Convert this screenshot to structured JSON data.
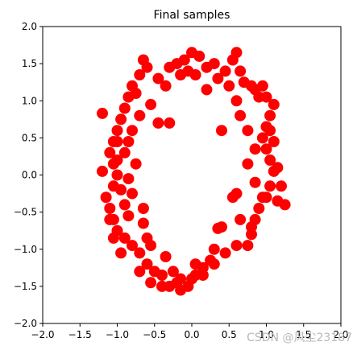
{
  "chart_data": {
    "type": "scatter",
    "title": "Final samples",
    "xlabel": "",
    "ylabel": "",
    "xlim": [
      -2.0,
      2.0
    ],
    "ylim": [
      -2.0,
      2.0
    ],
    "xticks": [
      "−2.0",
      "−1.5",
      "−1.0",
      "−0.5",
      "0.0",
      "0.5",
      "1.0",
      "1.5",
      "2.0"
    ],
    "yticks": [
      "−2.0",
      "−1.5",
      "−1.0",
      "−0.5",
      "0.0",
      "0.5",
      "1.0",
      "1.5",
      "2.0"
    ],
    "xtick_values": [
      -2.0,
      -1.5,
      -1.0,
      -0.5,
      0.0,
      0.5,
      1.0,
      1.5,
      2.0
    ],
    "ytick_values": [
      -2.0,
      -1.5,
      -1.0,
      -0.5,
      0.0,
      0.5,
      1.0,
      1.5,
      2.0
    ],
    "grid": false,
    "marker_color": "#ff0000",
    "points": [
      [
        -0.65,
        1.55
      ],
      [
        -0.45,
        1.3
      ],
      [
        -0.3,
        1.45
      ],
      [
        -0.2,
        1.5
      ],
      [
        -0.1,
        1.55
      ],
      [
        0.0,
        1.65
      ],
      [
        0.1,
        1.6
      ],
      [
        0.2,
        1.45
      ],
      [
        0.3,
        1.5
      ],
      [
        0.45,
        1.4
      ],
      [
        0.55,
        1.55
      ],
      [
        0.6,
        1.65
      ],
      [
        0.65,
        1.4
      ],
      [
        0.7,
        1.25
      ],
      [
        0.8,
        1.2
      ],
      [
        0.85,
        1.15
      ],
      [
        0.9,
        1.05
      ],
      [
        1.0,
        1.05
      ],
      [
        1.1,
        0.95
      ],
      [
        1.05,
        0.8
      ],
      [
        1.0,
        0.65
      ],
      [
        0.95,
        0.5
      ],
      [
        1.0,
        0.35
      ],
      [
        1.05,
        0.2
      ],
      [
        1.1,
        0.05
      ],
      [
        1.05,
        -0.15
      ],
      [
        1.0,
        -0.3
      ],
      [
        0.9,
        -0.45
      ],
      [
        0.85,
        -0.6
      ],
      [
        0.8,
        -0.8
      ],
      [
        0.75,
        -0.95
      ],
      [
        0.65,
        -0.6
      ],
      [
        0.6,
        -0.25
      ],
      [
        0.4,
        -0.7
      ],
      [
        0.3,
        -1.0
      ],
      [
        0.25,
        -1.15
      ],
      [
        0.15,
        -1.25
      ],
      [
        0.05,
        -1.35
      ],
      [
        -0.05,
        -1.5
      ],
      [
        -0.15,
        -1.55
      ],
      [
        -0.3,
        -1.5
      ],
      [
        -0.4,
        -1.35
      ],
      [
        -0.5,
        -1.3
      ],
      [
        -0.6,
        -1.2
      ],
      [
        -0.7,
        -1.05
      ],
      [
        -0.8,
        -0.95
      ],
      [
        -0.9,
        -0.85
      ],
      [
        -1.0,
        -0.75
      ],
      [
        -1.05,
        -0.6
      ],
      [
        -1.1,
        -0.45
      ],
      [
        -1.15,
        -0.3
      ],
      [
        -1.05,
        -0.15
      ],
      [
        -1.0,
        0.0
      ],
      [
        -1.05,
        0.15
      ],
      [
        -1.1,
        0.3
      ],
      [
        -1.05,
        0.45
      ],
      [
        -1.0,
        0.6
      ],
      [
        -0.95,
        0.75
      ],
      [
        -0.9,
        0.9
      ],
      [
        -0.85,
        1.05
      ],
      [
        -0.8,
        1.2
      ],
      [
        -0.7,
        1.35
      ],
      [
        -1.2,
        0.83
      ],
      [
        -1.2,
        0.05
      ],
      [
        -0.55,
        0.95
      ],
      [
        -0.45,
        0.7
      ],
      [
        -0.7,
        0.8
      ],
      [
        -0.8,
        0.6
      ],
      [
        -0.85,
        0.45
      ],
      [
        -0.9,
        0.3
      ],
      [
        -0.75,
        0.15
      ],
      [
        -0.85,
        -0.05
      ],
      [
        -0.8,
        -0.25
      ],
      [
        -0.9,
        -0.4
      ],
      [
        -0.85,
        -0.55
      ],
      [
        -0.65,
        -0.65
      ],
      [
        -0.6,
        -0.85
      ],
      [
        -0.55,
        -0.95
      ],
      [
        -0.35,
        -1.1
      ],
      [
        -0.25,
        -1.3
      ],
      [
        -0.15,
        -1.4
      ],
      [
        0.05,
        -1.2
      ],
      [
        0.35,
        -0.72
      ],
      [
        0.4,
        0.6
      ],
      [
        0.65,
        0.8
      ],
      [
        0.75,
        0.6
      ],
      [
        0.85,
        0.35
      ],
      [
        0.75,
        0.15
      ],
      [
        0.85,
        -0.1
      ],
      [
        0.95,
        -0.3
      ],
      [
        0.55,
        -0.3
      ],
      [
        0.95,
        1.2
      ],
      [
        0.6,
        1.0
      ],
      [
        0.5,
        1.2
      ],
      [
        0.35,
        1.3
      ],
      [
        0.2,
        1.15
      ],
      [
        0.05,
        1.35
      ],
      [
        -0.05,
        1.4
      ],
      [
        -0.15,
        1.35
      ],
      [
        -0.35,
        1.2
      ],
      [
        -0.6,
        1.45
      ],
      [
        -0.75,
        1.1
      ],
      [
        -1.0,
        0.45
      ],
      [
        -1.0,
        0.2
      ],
      [
        -0.95,
        -0.2
      ],
      [
        -1.1,
        -0.6
      ],
      [
        -1.05,
        -0.85
      ],
      [
        -0.95,
        -1.05
      ],
      [
        -0.7,
        -1.3
      ],
      [
        -0.55,
        -1.45
      ],
      [
        -0.4,
        -1.5
      ],
      [
        -0.2,
        -1.45
      ],
      [
        0.0,
        -1.4
      ],
      [
        0.15,
        -1.35
      ],
      [
        0.3,
        -1.2
      ],
      [
        0.45,
        -1.05
      ],
      [
        0.6,
        -0.95
      ],
      [
        0.8,
        -0.7
      ],
      [
        1.15,
        -0.35
      ],
      [
        1.25,
        -0.4
      ],
      [
        1.2,
        -0.15
      ],
      [
        1.15,
        0.1
      ],
      [
        1.1,
        0.45
      ],
      [
        1.05,
        0.6
      ],
      [
        -0.65,
        -0.45
      ],
      [
        -0.3,
        0.7
      ]
    ]
  },
  "watermark": "CSDN @风尘23187"
}
